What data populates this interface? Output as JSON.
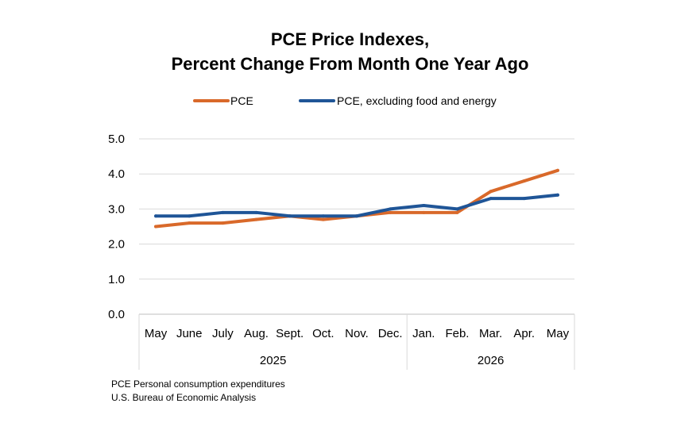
{
  "chart_data": {
    "type": "line",
    "title": "PCE Price Indexes,",
    "subtitle": "Percent Change From Month One Year Ago",
    "xlabel": "",
    "ylabel": "",
    "categories": [
      "May",
      "June",
      "July",
      "Aug.",
      "Sept.",
      "Oct.",
      "Nov.",
      "Dec.",
      "Jan.",
      "Feb.",
      "Mar.",
      "Apr.",
      "May"
    ],
    "year_groups": [
      {
        "label": "2025",
        "start": 0,
        "end": 7
      },
      {
        "label": "2026",
        "start": 8,
        "end": 12
      }
    ],
    "ylim": [
      0,
      5
    ],
    "yticks": [
      "0.0",
      "1.0",
      "2.0",
      "3.0",
      "4.0",
      "5.0"
    ],
    "grid": true,
    "legend_position": "top-center",
    "series": [
      {
        "name": "PCE",
        "color": "#d9692a",
        "values": [
          2.5,
          2.6,
          2.6,
          2.7,
          2.8,
          2.7,
          2.8,
          2.9,
          2.9,
          2.9,
          3.5,
          3.8,
          4.1
        ]
      },
      {
        "name": "PCE, excluding food and energy",
        "color": "#1f5597",
        "values": [
          2.8,
          2.8,
          2.9,
          2.9,
          2.8,
          2.8,
          2.8,
          3.0,
          3.1,
          3.0,
          3.3,
          3.3,
          3.4
        ]
      }
    ]
  },
  "notes": {
    "line1": "PCE Personal consumption expenditures",
    "line2": "U.S. Bureau of Economic Analysis"
  }
}
